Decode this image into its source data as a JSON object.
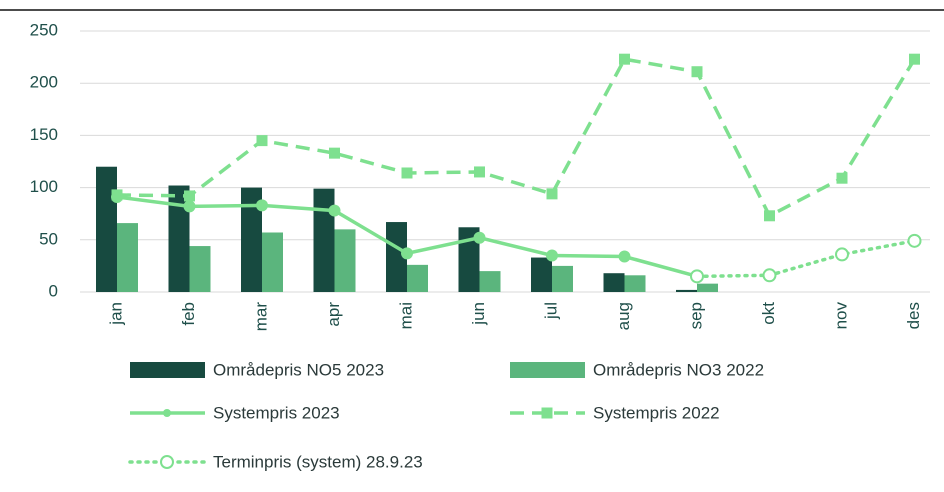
{
  "chart_data": {
    "type": "bar_line",
    "categories": [
      "jan",
      "feb",
      "mar",
      "apr",
      "mai",
      "jun",
      "jul",
      "aug",
      "sep",
      "okt",
      "nov",
      "des"
    ],
    "ylim": [
      0,
      250
    ],
    "yticks": [
      0,
      50,
      100,
      150,
      200,
      250
    ],
    "grid": true,
    "series": [
      {
        "name": "Områdepris NO5 2023",
        "type": "bar",
        "color": "#174a40",
        "values": [
          120,
          102,
          100,
          99,
          67,
          62,
          33,
          18,
          2,
          null,
          null,
          null
        ]
      },
      {
        "name": "Områdepris NO3 2022",
        "type": "bar",
        "color": "#5bb57d",
        "values": [
          66,
          44,
          57,
          60,
          26,
          20,
          25,
          16,
          8,
          null,
          null,
          null
        ]
      },
      {
        "name": "Systempris 2023",
        "type": "line",
        "style": "solid",
        "marker": "circle",
        "color": "#7ee08f",
        "values": [
          91,
          82,
          83,
          78,
          37,
          52,
          35,
          34,
          15,
          null,
          null,
          null
        ]
      },
      {
        "name": "Systempris 2022",
        "type": "line",
        "style": "dashed",
        "marker": "square",
        "color": "#7ee08f",
        "values": [
          93,
          92,
          145,
          133,
          114,
          115,
          94,
          223,
          211,
          73,
          109,
          223
        ]
      },
      {
        "name": "Terminpris (system) 28.9.23",
        "type": "line",
        "style": "dotted",
        "marker": "open-circle",
        "color": "#7ee08f",
        "values": [
          null,
          null,
          null,
          null,
          null,
          null,
          null,
          null,
          15,
          16,
          36,
          49
        ]
      }
    ]
  }
}
